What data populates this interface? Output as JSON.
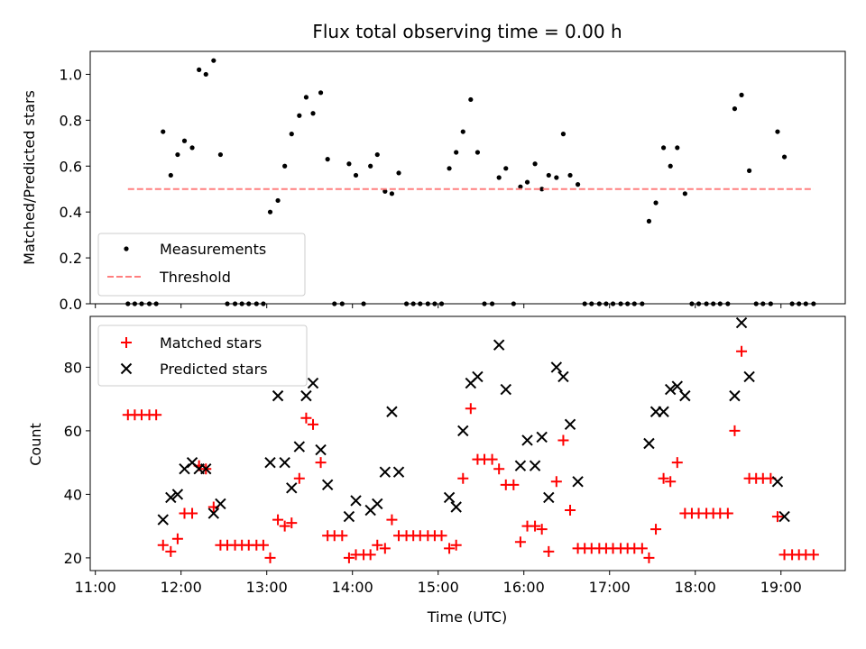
{
  "chart_data": [
    {
      "type": "scatter",
      "title": "Flux total observing time = 0.00 h",
      "xlabel": "",
      "ylabel": "Matched/Predicted stars",
      "xlim": [
        10.94,
        19.75
      ],
      "ylim": [
        0,
        1.1
      ],
      "yticks": [
        0.0,
        0.2,
        0.4,
        0.6,
        0.8,
        1.0
      ],
      "ytick_labels": [
        "0.0",
        "0.2",
        "0.4",
        "0.6",
        "0.8",
        "1.0"
      ],
      "legend": [
        "Measurements",
        "Threshold"
      ],
      "legend_loc": "lower-left",
      "series": [
        {
          "name": "Measurements",
          "marker": "dot",
          "color": "#000000",
          "x": [
            11.38,
            11.46,
            11.54,
            11.63,
            11.71,
            11.79,
            11.88,
            11.96,
            12.04,
            12.13,
            12.21,
            12.29,
            12.38,
            12.46,
            12.54,
            12.63,
            12.71,
            12.79,
            12.88,
            12.96,
            13.04,
            13.13,
            13.21,
            13.29,
            13.38,
            13.46,
            13.54,
            13.63,
            13.71,
            13.79,
            13.88,
            13.96,
            14.04,
            14.13,
            14.21,
            14.29,
            14.38,
            14.46,
            14.54,
            14.63,
            14.71,
            14.79,
            14.88,
            14.96,
            15.04,
            15.13,
            15.21,
            15.29,
            15.38,
            15.46,
            15.54,
            15.63,
            15.71,
            15.79,
            15.88,
            15.96,
            16.04,
            16.13,
            16.21,
            16.29,
            16.38,
            16.46,
            16.54,
            16.63,
            16.71,
            16.79,
            16.88,
            16.96,
            17.04,
            17.13,
            17.21,
            17.29,
            17.38,
            17.46,
            17.54,
            17.63,
            17.71,
            17.79,
            17.88,
            17.96,
            18.04,
            18.13,
            18.21,
            18.29,
            18.38,
            18.46,
            18.54,
            18.63,
            18.71,
            18.79,
            18.88,
            18.96,
            19.04,
            19.13,
            19.21,
            19.29,
            19.38
          ],
          "y": [
            0,
            0,
            0,
            0,
            0,
            0.75,
            0.56,
            0.65,
            0.71,
            0.68,
            1.02,
            1.0,
            1.06,
            0.65,
            0,
            0,
            0,
            0,
            0,
            0,
            0.4,
            0.45,
            0.6,
            0.74,
            0.82,
            0.9,
            0.83,
            0.92,
            0.63,
            0,
            0,
            0.61,
            0.56,
            0,
            0.6,
            0.65,
            0.49,
            0.48,
            0.57,
            0,
            0,
            0,
            0,
            0,
            0,
            0.59,
            0.66,
            0.75,
            0.89,
            0.66,
            0,
            0,
            0.55,
            0.59,
            0,
            0.51,
            0.53,
            0.61,
            0.5,
            0.56,
            0.55,
            0.74,
            0.56,
            0.52,
            0,
            0,
            0,
            0,
            0,
            0,
            0,
            0,
            0,
            0.36,
            0.44,
            0.68,
            0.6,
            0.68,
            0.48,
            0,
            0,
            0,
            0,
            0,
            0,
            0.85,
            0.91,
            0.58,
            0,
            0,
            0,
            0.75,
            0.64,
            0,
            0,
            0,
            0
          ]
        },
        {
          "name": "Threshold",
          "style": "dashed",
          "color": "#ff7f7f",
          "x": [
            11.38,
            19.38
          ],
          "y": [
            0.5,
            0.5
          ]
        }
      ]
    },
    {
      "type": "scatter",
      "title": "",
      "xlabel": "Time (UTC)",
      "ylabel": "Count",
      "xlim": [
        10.94,
        19.75
      ],
      "ylim": [
        16,
        96
      ],
      "xticks": [
        11,
        12,
        13,
        14,
        15,
        16,
        17,
        18,
        19
      ],
      "xtick_labels": [
        "11:00",
        "12:00",
        "13:00",
        "14:00",
        "15:00",
        "16:00",
        "17:00",
        "18:00",
        "19:00"
      ],
      "yticks": [
        20,
        40,
        60,
        80
      ],
      "ytick_labels": [
        "20",
        "40",
        "60",
        "80"
      ],
      "legend": [
        "Matched stars",
        "Predicted stars"
      ],
      "legend_loc": "upper-left",
      "series": [
        {
          "name": "Matched stars",
          "marker": "+",
          "color": "#ff0000",
          "x": [
            11.38,
            11.46,
            11.54,
            11.63,
            11.71,
            11.79,
            11.88,
            11.96,
            12.04,
            12.13,
            12.21,
            12.29,
            12.38,
            12.46,
            12.54,
            12.63,
            12.71,
            12.79,
            12.88,
            12.96,
            13.04,
            13.13,
            13.21,
            13.29,
            13.38,
            13.46,
            13.54,
            13.63,
            13.71,
            13.79,
            13.88,
            13.96,
            14.04,
            14.13,
            14.21,
            14.29,
            14.38,
            14.46,
            14.54,
            14.63,
            14.71,
            14.79,
            14.88,
            14.96,
            15.04,
            15.13,
            15.21,
            15.29,
            15.38,
            15.46,
            15.54,
            15.63,
            15.71,
            15.79,
            15.88,
            15.96,
            16.04,
            16.13,
            16.21,
            16.29,
            16.38,
            16.46,
            16.54,
            16.63,
            16.71,
            16.79,
            16.88,
            16.96,
            17.04,
            17.13,
            17.21,
            17.29,
            17.38,
            17.46,
            17.54,
            17.63,
            17.71,
            17.79,
            17.88,
            17.96,
            18.04,
            18.13,
            18.21,
            18.29,
            18.38,
            18.46,
            18.54,
            18.63,
            18.71,
            18.79,
            18.88,
            18.96,
            19.04,
            19.13,
            19.21,
            19.29,
            19.38
          ],
          "y": [
            65,
            65,
            65,
            65,
            65,
            24,
            22,
            26,
            34,
            34,
            49,
            48,
            36,
            24,
            24,
            24,
            24,
            24,
            24,
            24,
            20,
            32,
            30,
            31,
            45,
            64,
            62,
            50,
            27,
            27,
            27,
            20,
            21,
            21,
            21,
            24,
            23,
            32,
            27,
            27,
            27,
            27,
            27,
            27,
            27,
            23,
            24,
            45,
            67,
            51,
            51,
            51,
            48,
            43,
            43,
            25,
            30,
            30,
            29,
            22,
            44,
            57,
            35,
            23,
            23,
            23,
            23,
            23,
            23,
            23,
            23,
            23,
            23,
            20,
            29,
            45,
            44,
            50,
            34,
            34,
            34,
            34,
            34,
            34,
            34,
            60,
            85,
            45,
            45,
            45,
            45,
            33,
            21,
            21,
            21,
            21,
            21
          ]
        },
        {
          "name": "Predicted stars",
          "marker": "x",
          "color": "#000000",
          "x": [
            11.79,
            11.88,
            11.96,
            12.04,
            12.13,
            12.21,
            12.29,
            12.38,
            12.46,
            13.04,
            13.13,
            13.21,
            13.29,
            13.38,
            13.46,
            13.54,
            13.63,
            13.71,
            13.96,
            14.04,
            14.21,
            14.29,
            14.38,
            14.46,
            14.54,
            15.13,
            15.21,
            15.29,
            15.38,
            15.46,
            15.71,
            15.79,
            15.96,
            16.04,
            16.13,
            16.21,
            16.29,
            16.38,
            16.46,
            16.54,
            16.63,
            17.46,
            17.54,
            17.63,
            17.71,
            17.79,
            17.88,
            18.46,
            18.54,
            18.63,
            18.96,
            19.04
          ],
          "y": [
            32,
            39,
            40,
            48,
            50,
            48,
            48,
            34,
            37,
            50,
            71,
            50,
            42,
            55,
            71,
            75,
            54,
            43,
            33,
            38,
            35,
            37,
            47,
            66,
            47,
            39,
            36,
            60,
            75,
            77,
            87,
            73,
            49,
            57,
            49,
            58,
            39,
            80,
            77,
            62,
            44,
            56,
            66,
            66,
            73,
            74,
            71,
            71,
            94,
            77,
            44,
            33
          ]
        }
      ]
    }
  ]
}
